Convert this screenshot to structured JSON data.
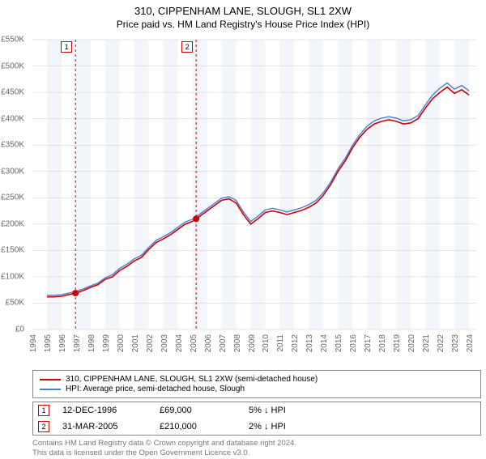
{
  "title": "310, CIPPENHAM LANE, SLOUGH, SL1 2XW",
  "subtitle": "Price paid vs. HM Land Registry's House Price Index (HPI)",
  "chart": {
    "type": "line",
    "background_color": "#ffffff",
    "plot_bg_stripe_a": "#f2f6fa",
    "plot_bg_stripe_b": "#ffffff",
    "grid_color": "#c8c8c8",
    "x": {
      "min": 1994,
      "max": 2024.5,
      "ticks": [
        1994,
        1995,
        1996,
        1997,
        1998,
        1999,
        2000,
        2001,
        2002,
        2003,
        2004,
        2005,
        2006,
        2007,
        2008,
        2009,
        2010,
        2011,
        2012,
        2013,
        2014,
        2015,
        2016,
        2017,
        2018,
        2019,
        2020,
        2021,
        2022,
        2023,
        2024
      ],
      "label_fontsize": 10
    },
    "y": {
      "min": 0,
      "max": 550000,
      "tick_step": 50000,
      "prefix": "£",
      "suffix": "K",
      "label_fontsize": 10
    },
    "series": [
      {
        "name": "310, CIPPENHAM LANE, SLOUGH, SL1 2XW (semi-detached house)",
        "color": "#cc0000",
        "line_width": 1.6,
        "x": [
          1995,
          1995.5,
          1996,
          1996.96,
          1997.5,
          1998,
          1998.5,
          1999,
          1999.5,
          2000,
          2000.5,
          2001,
          2001.5,
          2002,
          2002.5,
          2003,
          2003.5,
          2004,
          2004.5,
          2005,
          2005.25,
          2005.5,
          2006,
          2006.5,
          2007,
          2007.5,
          2008,
          2008.5,
          2009,
          2009.5,
          2010,
          2010.5,
          2011,
          2011.5,
          2012,
          2012.5,
          2013,
          2013.5,
          2014,
          2014.5,
          2015,
          2015.5,
          2016,
          2016.5,
          2017,
          2017.5,
          2018,
          2018.5,
          2019,
          2019.5,
          2020,
          2020.5,
          2021,
          2021.5,
          2022,
          2022.5,
          2023,
          2023.5,
          2024
        ],
        "y": [
          62000,
          62000,
          63000,
          69000,
          74000,
          80000,
          85000,
          95000,
          100000,
          112000,
          120000,
          130000,
          137000,
          152000,
          165000,
          172000,
          180000,
          190000,
          200000,
          205000,
          210000,
          215000,
          225000,
          235000,
          245000,
          248000,
          240000,
          218000,
          200000,
          210000,
          222000,
          225000,
          222000,
          218000,
          222000,
          226000,
          232000,
          240000,
          255000,
          275000,
          300000,
          320000,
          345000,
          365000,
          380000,
          390000,
          395000,
          398000,
          395000,
          390000,
          392000,
          400000,
          420000,
          438000,
          450000,
          460000,
          448000,
          455000,
          445000
        ]
      },
      {
        "name": "HPI: Average price, semi-detached house, Slough",
        "color": "#4a7dd4",
        "line_width": 1.4,
        "x": [
          1995,
          1995.5,
          1996,
          1996.96,
          1997.5,
          1998,
          1998.5,
          1999,
          1999.5,
          2000,
          2000.5,
          2001,
          2001.5,
          2002,
          2002.5,
          2003,
          2003.5,
          2004,
          2004.5,
          2005,
          2005.25,
          2005.5,
          2006,
          2006.5,
          2007,
          2007.5,
          2008,
          2008.5,
          2009,
          2009.5,
          2010,
          2010.5,
          2011,
          2011.5,
          2012,
          2012.5,
          2013,
          2013.5,
          2014,
          2014.5,
          2015,
          2015.5,
          2016,
          2016.5,
          2017,
          2017.5,
          2018,
          2018.5,
          2019,
          2019.5,
          2020,
          2020.5,
          2021,
          2021.5,
          2022,
          2022.5,
          2023,
          2023.5,
          2024
        ],
        "y": [
          65000,
          65000,
          66000,
          72000,
          77000,
          83000,
          88000,
          98000,
          104000,
          116000,
          124000,
          134000,
          141000,
          156000,
          169000,
          176000,
          184000,
          194000,
          204000,
          209000,
          214000,
          219000,
          229000,
          239000,
          249000,
          252000,
          245000,
          223000,
          205000,
          215000,
          227000,
          230000,
          227000,
          223000,
          227000,
          231000,
          237000,
          245000,
          260000,
          280000,
          305000,
          325000,
          350000,
          370000,
          386000,
          396000,
          401000,
          404000,
          401000,
          396000,
          398000,
          406000,
          426000,
          445000,
          458000,
          468000,
          456000,
          463000,
          453000
        ]
      }
    ],
    "markers": [
      {
        "id": "1",
        "x": 1996.96,
        "y": 69000,
        "label_offset_x": -0.4,
        "label_offset_y": 72000,
        "vline_color": "#cc0000",
        "vline_dash": "3,3"
      },
      {
        "id": "2",
        "x": 2005.25,
        "y": 210000,
        "label_offset_x": -0.4,
        "label_offset_y": 72000,
        "vline_color": "#cc0000",
        "vline_dash": "3,3"
      }
    ],
    "marker_point_color": "#cc0000",
    "marker_point_radius": 4
  },
  "legend": {
    "rows": [
      {
        "color": "#cc0000",
        "text": "310, CIPPENHAM LANE, SLOUGH, SL1 2XW (semi-detached house)"
      },
      {
        "color": "#4a7dd4",
        "text": "HPI: Average price, semi-detached house, Slough"
      }
    ]
  },
  "annotations": [
    {
      "id": "1",
      "date": "12-DEC-1996",
      "price": "£69,000",
      "pct": "5% ↓ HPI"
    },
    {
      "id": "2",
      "date": "31-MAR-2005",
      "price": "£210,000",
      "pct": "2% ↓ HPI"
    }
  ],
  "footer_line1": "Contains HM Land Registry data © Crown copyright and database right 2024.",
  "footer_line2": "This data is licensed under the Open Government Licence v3.0."
}
